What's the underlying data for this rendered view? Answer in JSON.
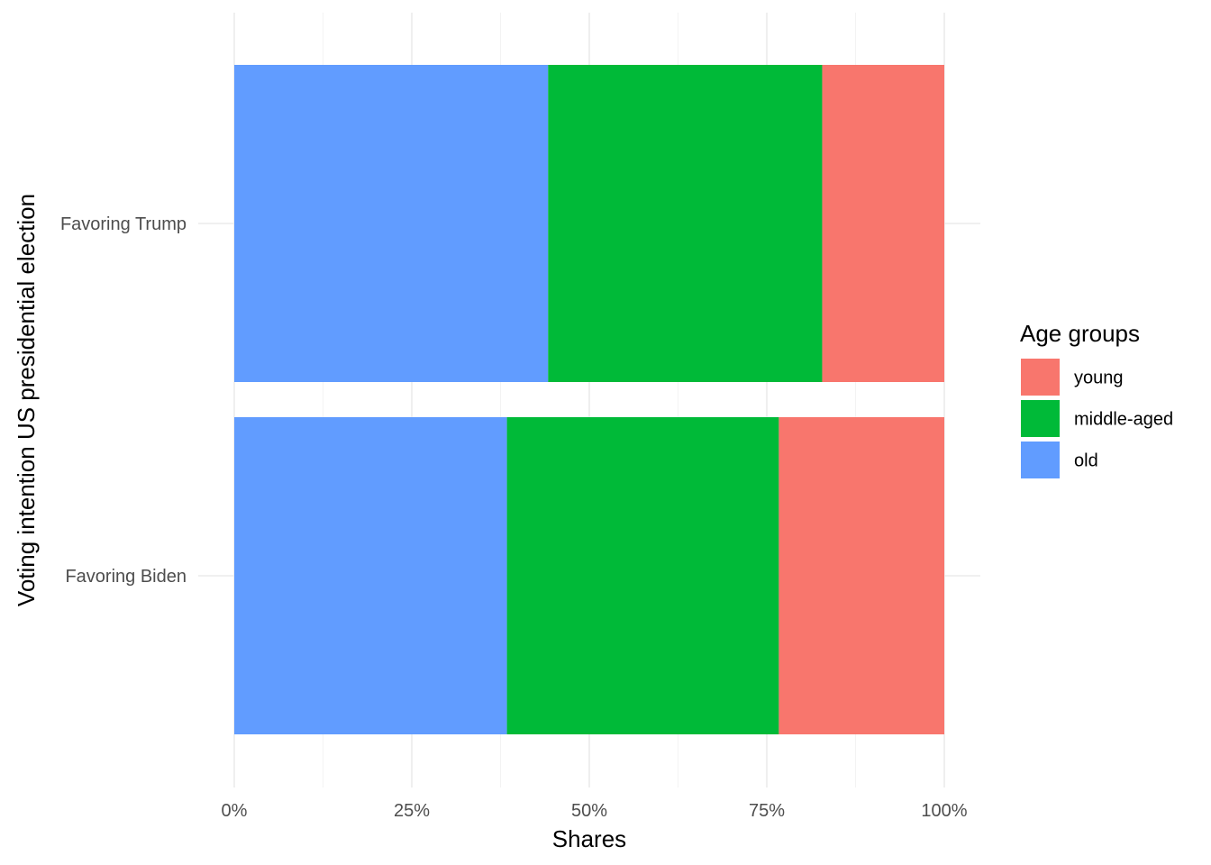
{
  "chart_data": {
    "type": "bar",
    "orientation": "horizontal",
    "stacked": "fill",
    "title": "",
    "xlabel": "Shares",
    "ylabel": "Voting intention US presidential election",
    "xlim": [
      0,
      1
    ],
    "x_ticks": [
      0,
      0.25,
      0.5,
      0.75,
      1.0
    ],
    "x_tick_labels": [
      "0%",
      "25%",
      "50%",
      "75%",
      "100%"
    ],
    "categories": [
      "Favoring Trump",
      "Favoring Biden"
    ],
    "series": [
      {
        "name": "old",
        "color": "#619CFF",
        "values": [
          0.442,
          0.384
        ]
      },
      {
        "name": "middle-aged",
        "color": "#00BA38",
        "values": [
          0.386,
          0.383
        ]
      },
      {
        "name": "young",
        "color": "#F8766D",
        "values": [
          0.172,
          0.233
        ]
      }
    ],
    "legend": {
      "title": "Age groups",
      "position": "right",
      "items": [
        {
          "label": "young",
          "color": "#F8766D"
        },
        {
          "label": "middle-aged",
          "color": "#00BA38"
        },
        {
          "label": "old",
          "color": "#619CFF"
        }
      ]
    },
    "grid": true
  }
}
